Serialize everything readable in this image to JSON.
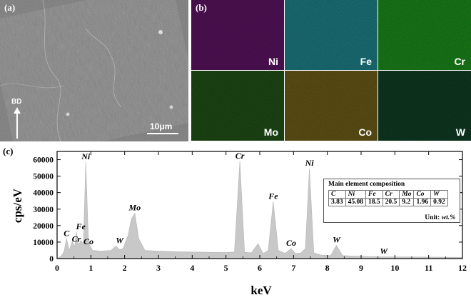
{
  "panel_a": {
    "label": "(a)",
    "direction_label": "BD",
    "scale_label": "10μm"
  },
  "panel_b": {
    "label": "(b)",
    "maps": [
      {
        "element": "Ni",
        "color": "#5a1360"
      },
      {
        "element": "Fe",
        "color": "#1d7e86"
      },
      {
        "element": "Cr",
        "color": "#1b8a1b"
      },
      {
        "element": "Mo",
        "color": "#1f4f16"
      },
      {
        "element": "Co",
        "color": "#6a5a18"
      },
      {
        "element": "W",
        "color": "#0f3d23"
      }
    ]
  },
  "panel_c": {
    "label": "(c)",
    "table": {
      "title": "Main element composition",
      "headers": [
        "C",
        "Ni",
        "Fe",
        "Cr",
        "Mo",
        "Co",
        "W"
      ],
      "values": [
        "3.83",
        "45.08",
        "18.5",
        "20.5",
        "9.2",
        "1.96",
        "0.92"
      ],
      "unit_prefix": "Unit: ",
      "unit": "wt.%"
    }
  },
  "chart_data": {
    "type": "area",
    "xlabel": "keV",
    "ylabel": "cps/eV",
    "xlim": [
      0,
      12
    ],
    "ylim": [
      0,
      65000
    ],
    "xticks": [
      0,
      1,
      2,
      3,
      4,
      5,
      6,
      7,
      8,
      9,
      10,
      11,
      12
    ],
    "yticks": [
      0,
      10000,
      20000,
      30000,
      40000,
      50000,
      60000
    ],
    "fill_color": "#c8c8c8",
    "x": [
      0,
      0.12,
      0.2,
      0.28,
      0.36,
      0.45,
      0.52,
      0.57,
      0.64,
      0.7,
      0.78,
      0.85,
      0.93,
      1.05,
      1.3,
      1.6,
      1.74,
      1.85,
      1.95,
      2.1,
      2.2,
      2.3,
      2.42,
      2.6,
      3.0,
      3.5,
      4.0,
      4.5,
      5.0,
      5.25,
      5.41,
      5.55,
      5.75,
      5.95,
      6.1,
      6.25,
      6.4,
      6.55,
      6.75,
      6.93,
      7.05,
      7.2,
      7.35,
      7.47,
      7.6,
      7.8,
      8.1,
      8.27,
      8.45,
      8.8,
      9.2,
      9.67,
      10.2,
      11.0,
      12.0
    ],
    "y": [
      0,
      1500,
      4000,
      12000,
      5000,
      10500,
      7000,
      16000,
      8000,
      11000,
      9000,
      58500,
      9500,
      5000,
      4500,
      5000,
      7500,
      5500,
      6000,
      14000,
      24000,
      27500,
      12000,
      5000,
      4500,
      4200,
      4000,
      3800,
      3700,
      4000,
      59000,
      3800,
      3500,
      9000,
      3000,
      5000,
      34500,
      5000,
      3200,
      6000,
      3200,
      3200,
      6000,
      54500,
      3500,
      2200,
      1800,
      8000,
      1800,
      1500,
      1300,
      1100,
      1000,
      900,
      800
    ],
    "peak_labels": [
      {
        "text": "C",
        "x": 0.28,
        "y": 12000
      },
      {
        "text": "Cr",
        "x": 0.57,
        "y": 8500
      },
      {
        "text": "Fe",
        "x": 0.7,
        "y": 16000
      },
      {
        "text": "Co",
        "x": 0.93,
        "y": 7000
      },
      {
        "text": "Ni",
        "x": 0.85,
        "y": 58500
      },
      {
        "text": "W",
        "x": 1.85,
        "y": 7500
      },
      {
        "text": "Mo",
        "x": 2.3,
        "y": 27500
      },
      {
        "text": "Cr",
        "x": 5.41,
        "y": 59000
      },
      {
        "text": "Fe",
        "x": 6.4,
        "y": 34500
      },
      {
        "text": "Co",
        "x": 6.93,
        "y": 6000
      },
      {
        "text": "Ni",
        "x": 7.47,
        "y": 54500
      },
      {
        "text": "W",
        "x": 8.27,
        "y": 8000
      },
      {
        "text": "W",
        "x": 9.67,
        "y": 1100
      }
    ]
  }
}
